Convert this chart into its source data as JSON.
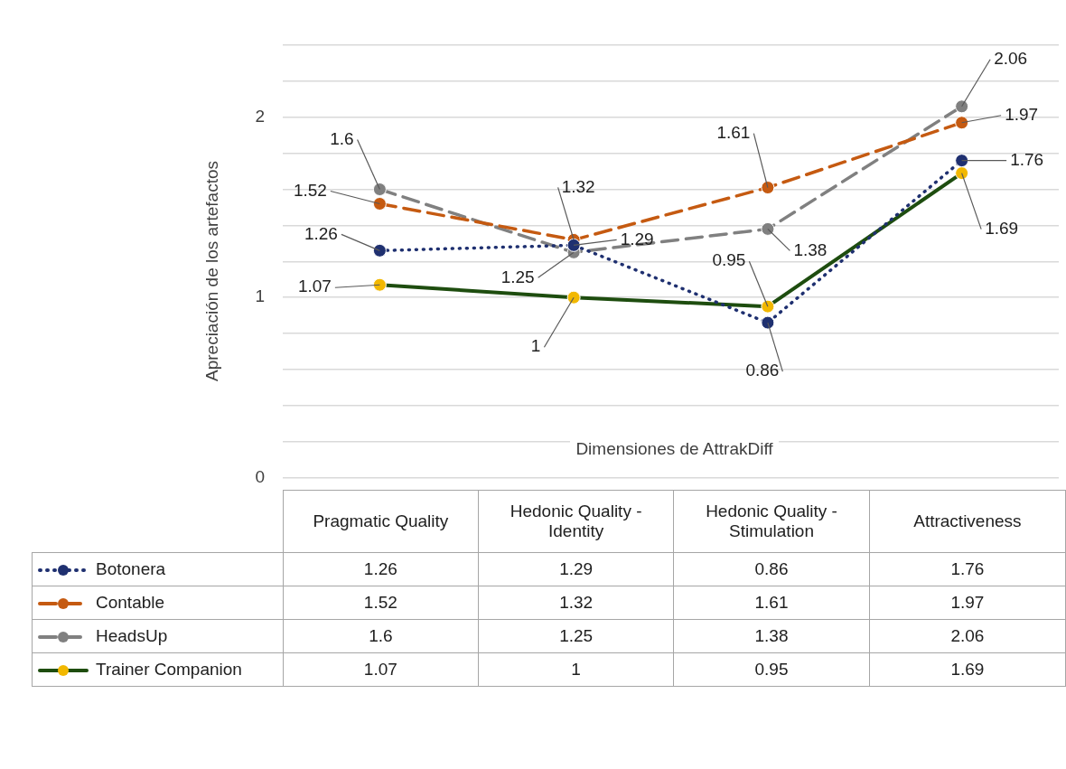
{
  "chart_data": {
    "type": "line",
    "xlabel": "Dimensiones de AttrakDiff",
    "ylabel": "Apreciación de los artefactos",
    "categories": [
      "Pragmatic Quality",
      "Hedonic Quality - Identity",
      "Hedonic Quality - Stimulation",
      "Attractiveness"
    ],
    "series": [
      {
        "name": "Botonera",
        "color": "#1f3070",
        "line_style": "dotted",
        "values": [
          1.26,
          1.29,
          0.86,
          1.76
        ]
      },
      {
        "name": "Contable",
        "color": "#c55a11",
        "line_style": "dashed",
        "values": [
          1.52,
          1.32,
          1.61,
          1.97
        ]
      },
      {
        "name": "HeadsUp",
        "color": "#808080",
        "line_style": "dashed",
        "values": [
          1.6,
          1.25,
          1.38,
          2.06
        ]
      },
      {
        "name": "Trainer Companion",
        "color": "#1e4d0f",
        "line_style": "solid",
        "colors": [
          "#f2b800",
          "#f2b800",
          "#f2b800",
          "#f2b800"
        ],
        "values": [
          1.07,
          1,
          0.95,
          1.69
        ]
      }
    ],
    "annotations": [
      {
        "text": "1.26",
        "x": "Pragmatic Quality",
        "y": 1.26
      },
      {
        "text": "1.29",
        "x": "Hedonic Quality - Identity",
        "y": 1.29
      },
      {
        "text": "0.86",
        "x": "Hedonic Quality - Stimulation",
        "y": 0.86
      },
      {
        "text": "1.76",
        "x": "Attractiveness",
        "y": 1.76
      },
      {
        "text": "1.52",
        "x": "Pragmatic Quality",
        "y": 1.52
      },
      {
        "text": "1.32",
        "x": "Hedonic Quality - Identity",
        "y": 1.32
      },
      {
        "text": "1.61",
        "x": "Hedonic Quality - Stimulation",
        "y": 1.61
      },
      {
        "text": "1.97",
        "x": "Attractiveness",
        "y": 1.97
      },
      {
        "text": "1.6",
        "x": "Pragmatic Quality",
        "y": 1.6
      },
      {
        "text": "1.25",
        "x": "Hedonic Quality - Identity",
        "y": 1.25
      },
      {
        "text": "1.38",
        "x": "Hedonic Quality - Stimulation",
        "y": 1.38
      },
      {
        "text": "2.06",
        "x": "Attractiveness",
        "y": 2.06
      },
      {
        "text": "1.07",
        "x": "Pragmatic Quality",
        "y": 1.07
      },
      {
        "text": "1",
        "x": "Hedonic Quality - Identity",
        "y": 1
      },
      {
        "text": "0.95",
        "x": "Hedonic Quality - Stimulation",
        "y": 0.95
      },
      {
        "text": "1.69",
        "x": "Attractiveness",
        "y": 1.69
      }
    ],
    "ylim": [
      0,
      2.4
    ],
    "yticks": [
      0,
      {
        "value": 0.2,
        "label": null
      },
      {
        "value": 0.4,
        "label": null
      },
      {
        "value": 0.6,
        "label": null
      },
      {
        "value": 0.8,
        "label": null
      },
      1,
      {
        "value": 1.2,
        "label": null
      },
      {
        "value": 1.4,
        "label": null
      },
      {
        "value": 1.6,
        "label": null
      },
      {
        "value": 1.8,
        "label": null
      },
      2,
      {
        "value": 2.2,
        "label": null
      },
      {
        "value": 2.4,
        "label": null
      }
    ],
    "grid": "y",
    "marker": "circle",
    "legend": "bottom",
    "data_labels": true
  }
}
